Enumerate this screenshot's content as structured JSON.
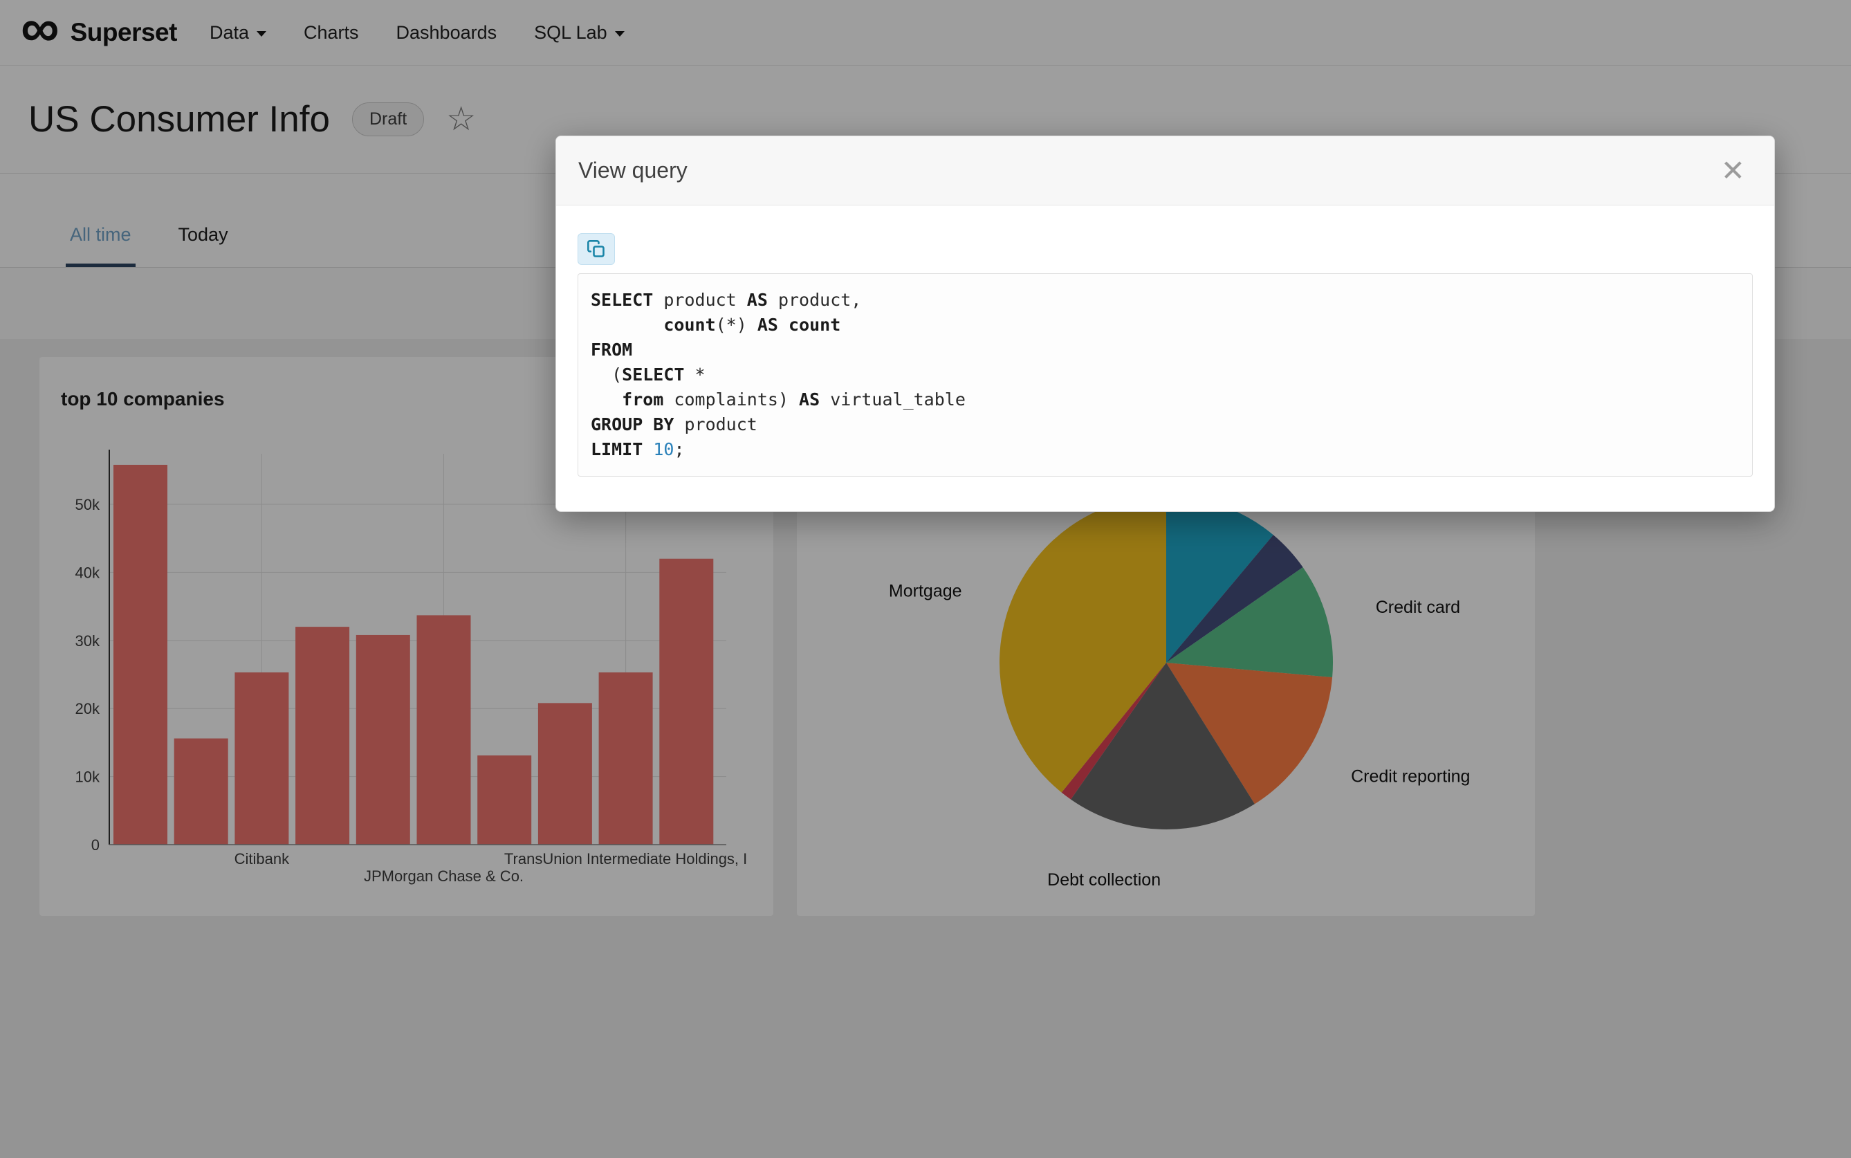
{
  "icons": {
    "logo": "∞",
    "star": "☆",
    "close": "✕",
    "copy": "copy-to-clipboard"
  },
  "navbar": {
    "brand": "Superset",
    "items": [
      {
        "label": "Data",
        "caret": true
      },
      {
        "label": "Charts",
        "caret": false
      },
      {
        "label": "Dashboards",
        "caret": false
      },
      {
        "label": "SQL Lab",
        "caret": true
      }
    ]
  },
  "header": {
    "title": "US Consumer Info",
    "badge": "Draft"
  },
  "tabs": [
    {
      "label": "All time",
      "active": true
    },
    {
      "label": "Today",
      "active": false
    }
  ],
  "modal": {
    "title": "View query",
    "sql_text": "SELECT product AS product,\n       count(*) AS count\nFROM\n  (SELECT *\n   from complaints) AS virtual_table\nGROUP BY product\nLIMIT 10;",
    "sql_lines": [
      [
        {
          "t": "SELECT",
          "s": "k"
        },
        {
          "t": " product ",
          "s": "p"
        },
        {
          "t": "AS",
          "s": "k"
        },
        {
          "t": " product,",
          "s": "p"
        }
      ],
      [
        {
          "t": "       ",
          "s": "p"
        },
        {
          "t": "count",
          "s": "k"
        },
        {
          "t": "(*) ",
          "s": "p"
        },
        {
          "t": "AS",
          "s": "k"
        },
        {
          "t": " ",
          "s": "p"
        },
        {
          "t": "count",
          "s": "k"
        }
      ],
      [
        {
          "t": "FROM",
          "s": "k"
        }
      ],
      [
        {
          "t": "  (",
          "s": "p"
        },
        {
          "t": "SELECT",
          "s": "k"
        },
        {
          "t": " *",
          "s": "p"
        }
      ],
      [
        {
          "t": "   ",
          "s": "p"
        },
        {
          "t": "from",
          "s": "k"
        },
        {
          "t": " complaints) ",
          "s": "p"
        },
        {
          "t": "AS",
          "s": "k"
        },
        {
          "t": " virtual_table",
          "s": "p"
        }
      ],
      [
        {
          "t": "GROUP BY",
          "s": "k"
        },
        {
          "t": " product",
          "s": "p"
        }
      ],
      [
        {
          "t": "LIMIT",
          "s": "k"
        },
        {
          "t": " ",
          "s": "p"
        },
        {
          "t": "10",
          "s": "n"
        },
        {
          "t": ";",
          "s": "p"
        }
      ]
    ]
  },
  "chart_data": [
    {
      "type": "bar",
      "title": "top 10 companies",
      "values": [
        55800,
        15600,
        25300,
        32000,
        30800,
        33700,
        13100,
        20800,
        25300,
        42000
      ],
      "x_ticks": [
        {
          "index": 2,
          "label": "Citibank",
          "row": 0
        },
        {
          "index": 5,
          "label": "JPMorgan Chase & Co.",
          "row": 1
        },
        {
          "index": 8,
          "label": "TransUnion Intermediate Holdings, I",
          "row": 0
        }
      ],
      "y_ticks": [
        "0",
        "10k",
        "20k",
        "30k",
        "40k",
        "50k"
      ],
      "ylim": [
        0,
        56500
      ],
      "bar_color": "#ef756f",
      "grid": true
    },
    {
      "type": "pie",
      "slices": [
        {
          "label": "",
          "pct": 11.1,
          "color": "#1FA8C9"
        },
        {
          "label": "",
          "pct": 4.2,
          "color": "#454E7C"
        },
        {
          "label": "Credit card",
          "pct": 11.1,
          "color": "#5AC189"
        },
        {
          "label": "Credit reporting",
          "pct": 14.7,
          "color": "#FF7F44"
        },
        {
          "label": "Debt collection",
          "pct": 18.6,
          "color": "#666666"
        },
        {
          "label": "",
          "pct": 1.1,
          "color": "#E04355"
        },
        {
          "label": "Mortgage",
          "pct": 39.2,
          "color": "#F5C21F"
        }
      ],
      "legend": "off"
    }
  ]
}
